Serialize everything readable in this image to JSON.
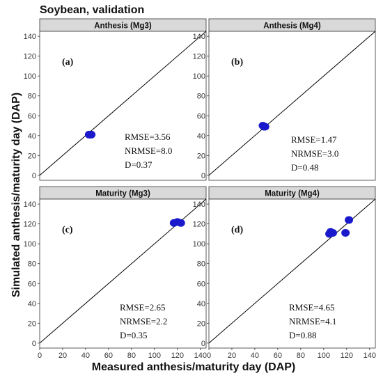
{
  "figure": {
    "title": "Soybean, validation",
    "xlabel": "Measured anthesis/maturity day (DAP)",
    "ylabel": "Simulated anthesis/maturity day (DAP)"
  },
  "colors": {
    "point": "#1a1acc",
    "strip_bg": "#d9d9d9",
    "panel_border": "#333333",
    "line": "#000000"
  },
  "chart_data": [
    {
      "type": "scatter",
      "strip": "Anthesis (Mg3)",
      "tag": "(a)",
      "stats": [
        "RMSE=3.56",
        "NRMSE=8.0",
        "D=0.37"
      ],
      "xlim": [
        0,
        145
      ],
      "ylim": [
        -5,
        145
      ],
      "ticks": [
        0,
        20,
        40,
        60,
        80,
        100,
        120,
        140
      ],
      "reference_line": "1:1",
      "points": [
        [
          43,
          41
        ],
        [
          44,
          41
        ],
        [
          45,
          41
        ]
      ]
    },
    {
      "type": "scatter",
      "strip": "Anthesis (Mg4)",
      "tag": "(b)",
      "stats": [
        "RMSE=1.47",
        "NRMSE=3.0",
        "D=0.48"
      ],
      "xlim": [
        0,
        145
      ],
      "ylim": [
        -5,
        145
      ],
      "ticks": [
        0,
        20,
        40,
        60,
        80,
        100,
        120,
        140
      ],
      "reference_line": "1:1",
      "points": [
        [
          47,
          50
        ],
        [
          48,
          49
        ],
        [
          49,
          49
        ]
      ]
    },
    {
      "type": "scatter",
      "strip": "Maturity (Mg3)",
      "tag": "(c)",
      "stats": [
        "RMSE=2.65",
        "NRMSE=2.2",
        "D=0.35"
      ],
      "xlim": [
        0,
        145
      ],
      "ylim": [
        -5,
        145
      ],
      "ticks": [
        0,
        20,
        40,
        60,
        80,
        100,
        120,
        140
      ],
      "reference_line": "1:1",
      "points": [
        [
          117,
          121
        ],
        [
          120,
          122
        ],
        [
          123,
          121
        ]
      ]
    },
    {
      "type": "scatter",
      "strip": "Maturity (Mg4)",
      "tag": "(d)",
      "stats": [
        "RMSE=4.65",
        "NRMSE=4.1",
        "D=0.88"
      ],
      "xlim": [
        0,
        145
      ],
      "ylim": [
        -5,
        145
      ],
      "ticks": [
        0,
        20,
        40,
        60,
        80,
        100,
        120,
        140
      ],
      "reference_line": "1:1",
      "points": [
        [
          105,
          110
        ],
        [
          106,
          112
        ],
        [
          108,
          111
        ],
        [
          119,
          111
        ],
        [
          122,
          124
        ]
      ]
    }
  ]
}
